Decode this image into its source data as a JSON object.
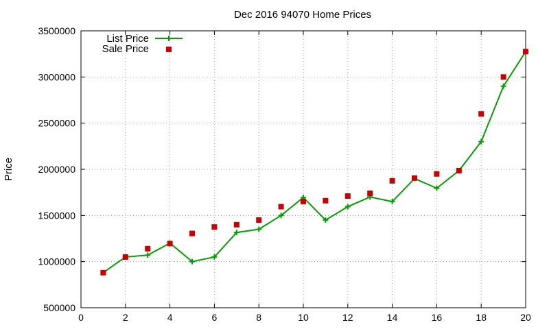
{
  "chart_data": {
    "type": "line",
    "title": "Dec 2016 94070 Home Prices",
    "xlabel": "",
    "ylabel": "Price",
    "xlim": [
      0,
      20
    ],
    "ylim": [
      500000,
      3500000
    ],
    "x_ticks": [
      0,
      2,
      4,
      6,
      8,
      10,
      12,
      14,
      16,
      18,
      20
    ],
    "y_ticks": [
      500000,
      1000000,
      1500000,
      2000000,
      2500000,
      3000000,
      3500000
    ],
    "grid": true,
    "legend_position": "top-left",
    "series": [
      {
        "name": "List Price",
        "style": "line with plus markers",
        "color": "#00a000",
        "x": [
          1,
          2,
          3,
          4,
          5,
          6,
          7,
          8,
          9,
          10,
          11,
          12,
          13,
          14,
          15,
          16,
          17,
          18,
          19,
          20
        ],
        "values": [
          880000,
          1050000,
          1070000,
          1200000,
          1000000,
          1050000,
          1315000,
          1350000,
          1500000,
          1695000,
          1450000,
          1595000,
          1700000,
          1650000,
          1900000,
          1795000,
          1985000,
          2300000,
          2900000,
          3275000
        ]
      },
      {
        "name": "Sale Price",
        "style": "square points",
        "color": "#cc0000",
        "x": [
          1,
          2,
          3,
          4,
          5,
          6,
          7,
          8,
          9,
          10,
          11,
          12,
          13,
          14,
          15,
          16,
          17,
          18,
          19,
          20
        ],
        "values": [
          880000,
          1050000,
          1140000,
          1195000,
          1305000,
          1375000,
          1400000,
          1450000,
          1595000,
          1650000,
          1660000,
          1710000,
          1740000,
          1875000,
          1905000,
          1950000,
          1985000,
          2600000,
          3000000,
          3275000
        ]
      }
    ]
  }
}
